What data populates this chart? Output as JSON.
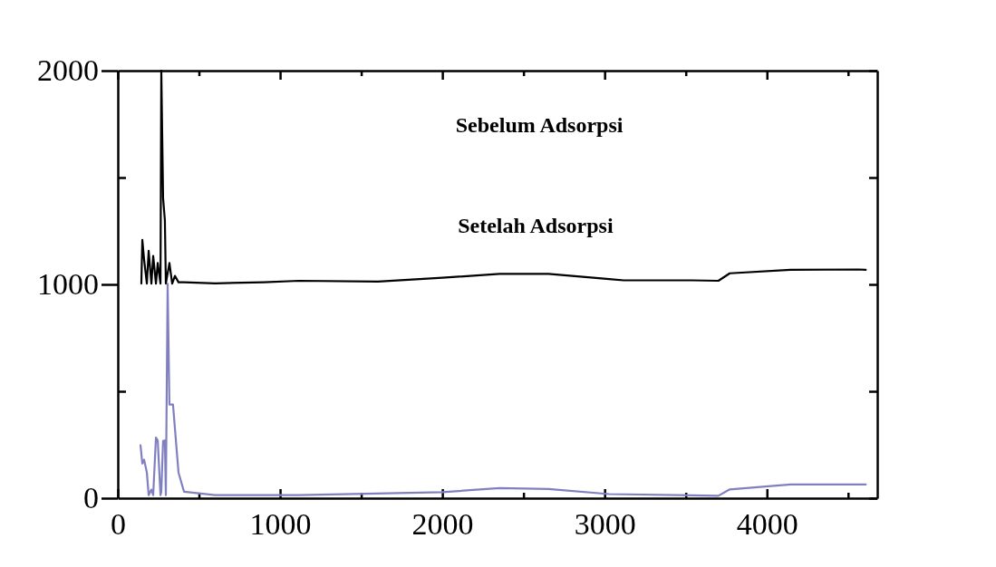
{
  "chart_data": {
    "type": "line",
    "annotations": [
      "Sebelum Adsorpsi",
      "Setelah Adsorpsi"
    ],
    "xlim": [
      0,
      4680
    ],
    "ylim": [
      0,
      2000
    ],
    "xticks": [
      0,
      {
        "value": 500,
        "label": null
      },
      1000,
      {
        "value": 1500,
        "label": null
      },
      2000,
      {
        "value": 2500,
        "label": null
      },
      3000,
      {
        "value": 3500,
        "label": null
      },
      4000,
      {
        "value": 4500,
        "label": null
      }
    ],
    "yticks": [
      0,
      {
        "value": 500,
        "label": null
      },
      1000,
      {
        "value": 1500,
        "label": null
      },
      2000
    ],
    "grid": false,
    "line_style": "solid",
    "marker": "none",
    "series": [
      {
        "color": "#000000",
        "x": [
          145,
          151,
          162,
          179,
          190,
          207,
          218,
          235,
          246,
          263,
          268,
          279,
          290,
          296,
          318,
          335,
          352,
          374,
          408,
          600,
          900,
          1117,
          1603,
          2000,
          2352,
          2654,
          3028,
          3117,
          3536,
          3701,
          3771,
          4145,
          4564,
          4609
        ],
        "values": [
          1004,
          1208,
          1116,
          1004,
          1157,
          1004,
          1133,
          1004,
          1100,
          1004,
          2000,
          1403,
          1300,
          1004,
          1100,
          1004,
          1040,
          1010,
          1010,
          1005,
          1010,
          1017,
          1013,
          1031,
          1049,
          1049,
          1025,
          1019,
          1019,
          1017,
          1052,
          1068,
          1070,
          1068
        ]
      },
      {
        "color": "#8080c0",
        "x": [
          140,
          151,
          162,
          179,
          190,
          207,
          218,
          235,
          246,
          263,
          268,
          279,
          290,
          296,
          307,
          318,
          340,
          374,
          408,
          600,
          1117,
          2000,
          2352,
          2654,
          3028,
          3701,
          3771,
          4145,
          4564,
          4609
        ],
        "values": [
          247,
          162,
          180,
          120,
          14,
          40,
          14,
          283,
          270,
          14,
          30,
          268,
          270,
          14,
          1003,
          438,
          438,
          120,
          30,
          14,
          14,
          28,
          47,
          43,
          19,
          11,
          41,
          64,
          64,
          64
        ]
      }
    ]
  }
}
